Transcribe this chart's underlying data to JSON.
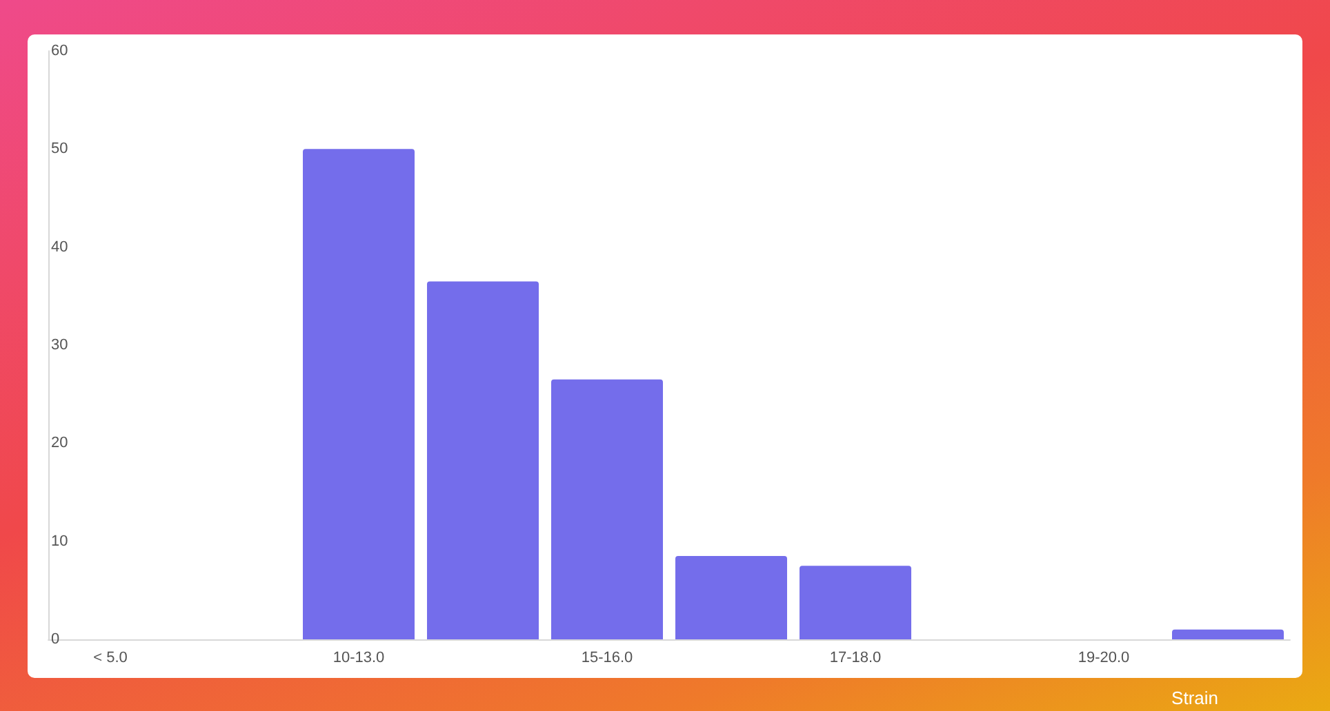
{
  "chart_data": {
    "type": "bar",
    "xlabel": "Strain",
    "categories": [
      "< 5.0",
      null,
      "10-13.0",
      null,
      "15-16.0",
      null,
      "17-18.0",
      null,
      "19-20.0",
      null
    ],
    "values": [
      0,
      0,
      50,
      36.5,
      26.5,
      8.5,
      7.5,
      0,
      0,
      1
    ],
    "color": "#746deb",
    "ylim": [
      0,
      60
    ],
    "yticks": [
      0,
      10,
      20,
      30,
      40,
      50,
      60
    ],
    "grid": false
  }
}
